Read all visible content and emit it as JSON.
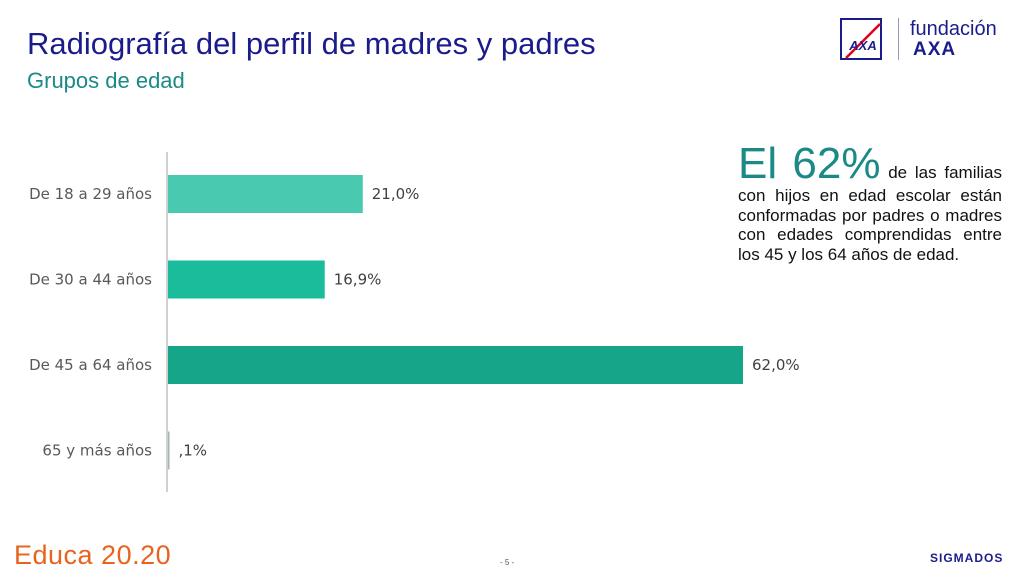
{
  "header": {
    "title": "Radiografía del perfil de madres y padres",
    "subtitle": "Grupos de edad"
  },
  "logo": {
    "top": "fundación",
    "bottom": "AXA",
    "mark": "AXA",
    "icon": "axa-logo-icon"
  },
  "chart_data": {
    "type": "bar",
    "orientation": "horizontal",
    "categories": [
      "De 18 a 29 años",
      "De 30 a 44 años",
      "De 45 a 64 años",
      "65 y más años"
    ],
    "values": [
      21.0,
      16.9,
      62.0,
      0.1
    ],
    "value_labels": [
      "21,0%",
      "16,9%",
      "62,0%",
      ",1%"
    ],
    "colors": [
      "#48c9b0",
      "#1abc9c",
      "#17a589",
      "#9fb8b4"
    ],
    "xlim": [
      0,
      62
    ],
    "grid": false,
    "title": "",
    "xlabel": "",
    "ylabel": ""
  },
  "callout": {
    "big": "El 62%",
    "text": "de las familias con hijos en edad escolar están conformadas por padres o madres con edades comprendidas entre los 45 y los 64 años de edad."
  },
  "footer": {
    "left": "Educa 20.20",
    "page": "- 5 -",
    "right": "SIGMADOS"
  }
}
